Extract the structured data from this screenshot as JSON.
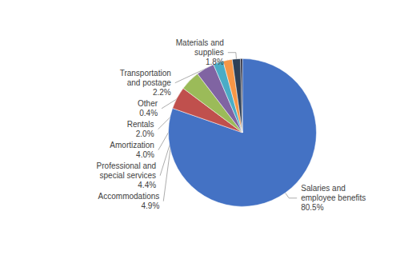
{
  "chart_data": {
    "type": "pie",
    "categories": [
      "Salaries and\nemployee benefits",
      "Accommodations",
      "Professional and\nspecial services",
      "Amortization",
      "Transportation\nand postage",
      "Rentals",
      "Materials and\nsupplies",
      "Other"
    ],
    "values": [
      80.5,
      4.9,
      4.4,
      4.0,
      2.2,
      2.0,
      1.8,
      0.4
    ],
    "value_labels": [
      "80.5%",
      "4.9%",
      "4.4%",
      "4.0%",
      "2.2%",
      "2.0%",
      "1.8%",
      "0.4%"
    ],
    "colors": [
      "#4472C4",
      "#C0504D",
      "#9BBB59",
      "#8064A2",
      "#4BACC6",
      "#F79646",
      "#2E4057",
      "#1A1A2E"
    ],
    "data_labels": true
  }
}
